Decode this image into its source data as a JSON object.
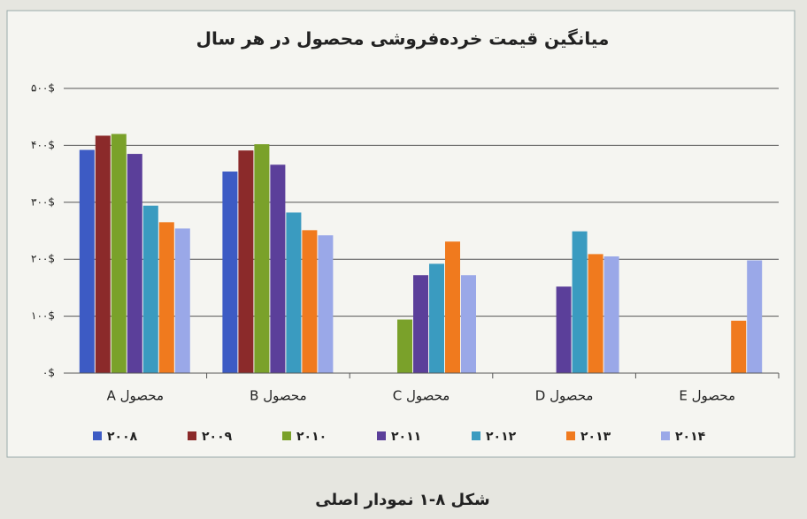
{
  "chart_data": {
    "type": "bar",
    "title": "میانگین قیمت خرده‌فروشی محصول در هر سال",
    "caption": "شکل ۸-۱  نمودار اصلی",
    "categories": [
      "محصول A",
      "محصول B",
      "محصول C",
      "محصول D",
      "محصول E"
    ],
    "series": [
      {
        "name": "۲۰۰۸",
        "color": "#3d5bc4",
        "values": [
          392,
          354,
          null,
          null,
          null
        ]
      },
      {
        "name": "۲۰۰۹",
        "color": "#8b2a2a",
        "values": [
          417,
          391,
          null,
          null,
          null
        ]
      },
      {
        "name": "۲۰۱۰",
        "color": "#7aa12a",
        "values": [
          420,
          402,
          94,
          null,
          null
        ]
      },
      {
        "name": "۲۰۱۱",
        "color": "#5b3f9a",
        "values": [
          385,
          366,
          172,
          152,
          null
        ]
      },
      {
        "name": "۲۰۱۲",
        "color": "#3a9bc0",
        "values": [
          294,
          282,
          192,
          249,
          null
        ]
      },
      {
        "name": "۲۰۱۳",
        "color": "#f07a1e",
        "values": [
          265,
          251,
          231,
          209,
          92
        ]
      },
      {
        "name": "۲۰۱۴",
        "color": "#9aa8e8",
        "values": [
          254,
          242,
          172,
          205,
          198
        ]
      }
    ],
    "ylim": [
      0,
      500
    ],
    "yticks": [
      {
        "value": 0,
        "label": "۰$"
      },
      {
        "value": 100,
        "label": "۱۰۰$"
      },
      {
        "value": 200,
        "label": "۲۰۰$"
      },
      {
        "value": 300,
        "label": "۳۰۰$"
      },
      {
        "value": 400,
        "label": "۴۰۰$"
      },
      {
        "value": 500,
        "label": "۵۰۰$"
      }
    ],
    "grid": true
  }
}
